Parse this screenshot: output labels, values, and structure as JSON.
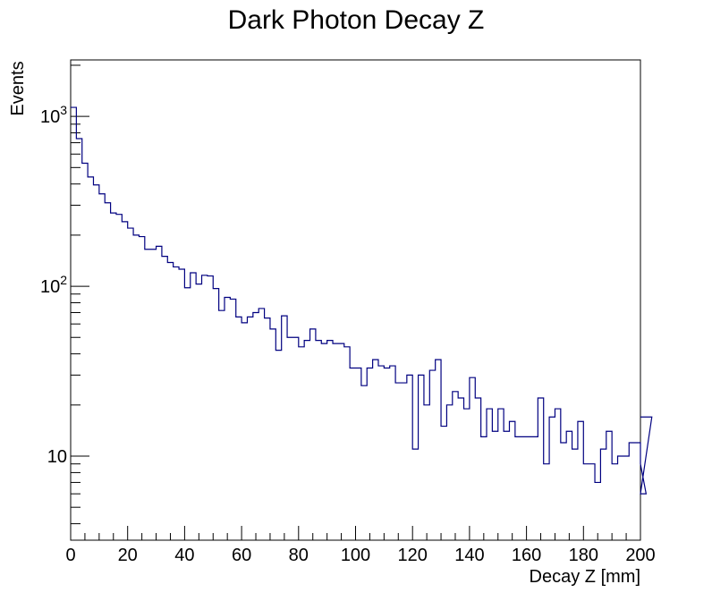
{
  "chart_data": {
    "type": "histogram",
    "title": "Dark Photon Decay Z",
    "xlabel": "Decay Z [mm]",
    "ylabel": "Events",
    "x_range": [
      0,
      200
    ],
    "y_scale": "log",
    "y_range": [
      3.2,
      2150
    ],
    "grid": false,
    "legend": "none",
    "line_color": "#000080",
    "bin_width": 2,
    "x_ticks": [
      "0",
      "20",
      "40",
      "60",
      "80",
      "100",
      "120",
      "140",
      "160",
      "180",
      "200"
    ],
    "y_ticks": [
      {
        "value": 10,
        "base": "10",
        "exp": ""
      },
      {
        "value": 100,
        "base": "10",
        "exp": "2"
      },
      {
        "value": 1000,
        "base": "10",
        "exp": "3"
      }
    ],
    "series": [
      {
        "values": [
          1130,
          740,
          530,
          440,
          395,
          350,
          310,
          270,
          265,
          240,
          220,
          200,
          196,
          165,
          165,
          172,
          150,
          138,
          130,
          126,
          98,
          120,
          103,
          116,
          115,
          97,
          72,
          86,
          84,
          66,
          61,
          66,
          70,
          74,
          65,
          56,
          42,
          67,
          50,
          50,
          44,
          48,
          56,
          48,
          46,
          48,
          46,
          46,
          44,
          33,
          33,
          26,
          33,
          37,
          34,
          33,
          34,
          27,
          27,
          30,
          11,
          30,
          20,
          32,
          37,
          15,
          20,
          24,
          22,
          19,
          29,
          22,
          13,
          19,
          14,
          19,
          14,
          16,
          13,
          13,
          13,
          13,
          22,
          9,
          17,
          19,
          12,
          14,
          11,
          16,
          9,
          9,
          7,
          11,
          14,
          9,
          10,
          10,
          12,
          12,
          9,
          6,
          17
        ]
      }
    ]
  }
}
